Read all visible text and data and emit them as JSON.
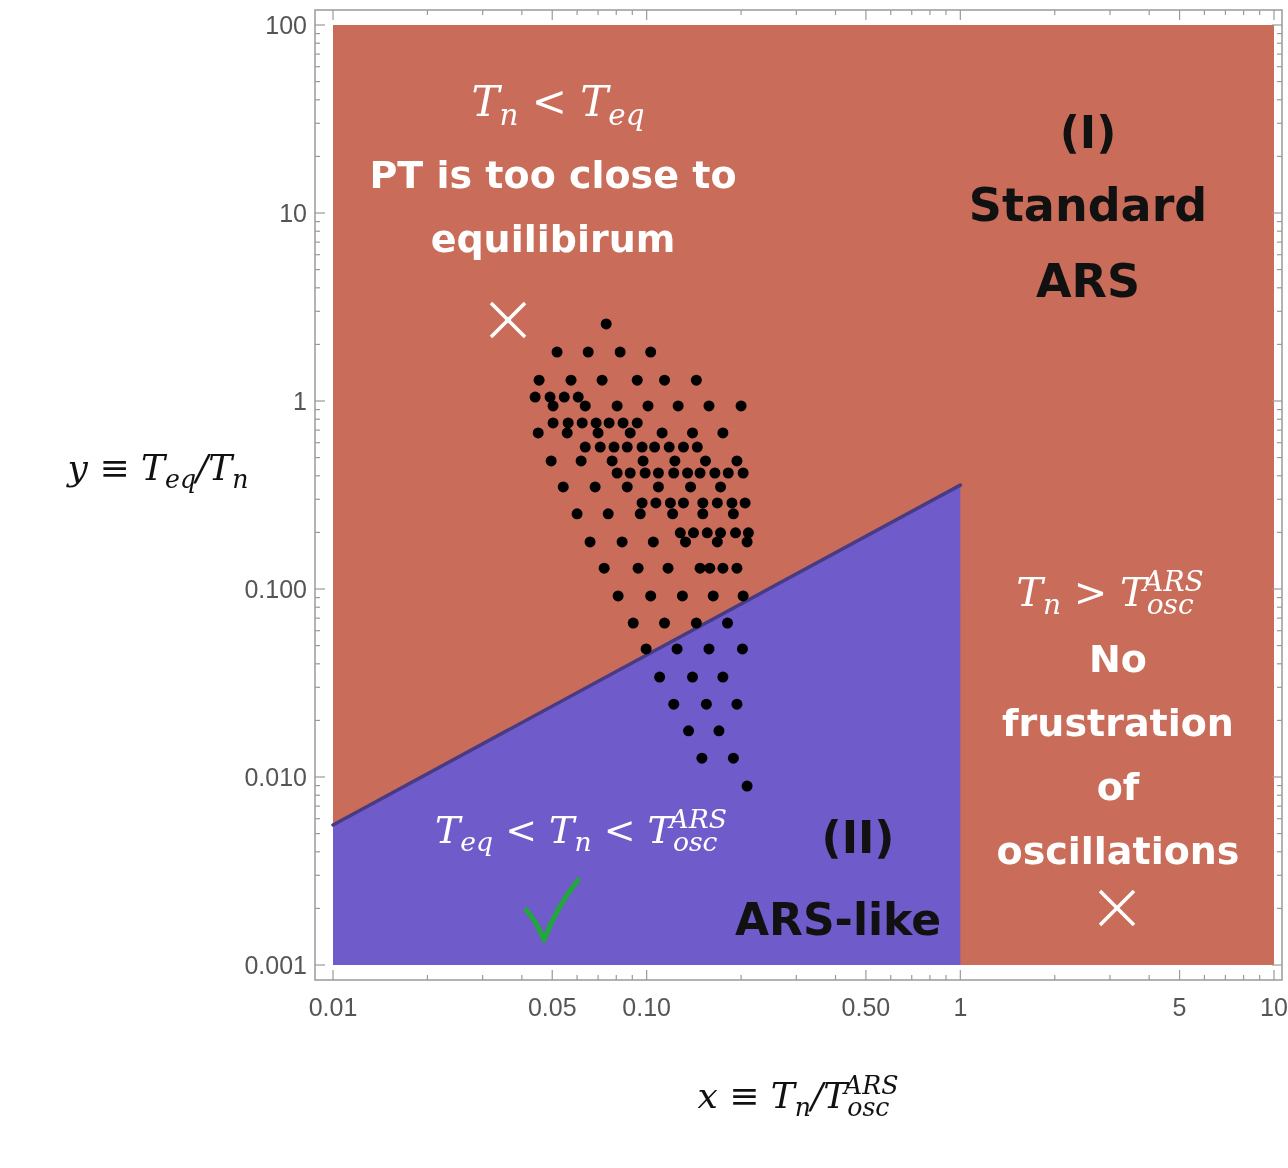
{
  "chart_data": {
    "type": "scatter",
    "xlabel": "x ≡ T$_{n}$/T$_{osc}$$^{ARS}$",
    "ylabel": "y ≡ T$_{eq}$/T$_{n}$",
    "log": "xy",
    "xlim": [
      0.01,
      10
    ],
    "ylim": [
      0.001,
      100
    ],
    "xticks": [
      {
        "value": 0.01,
        "label": "0.01"
      },
      {
        "value": 0.02,
        "label": null
      },
      {
        "value": 0.03,
        "label": null
      },
      {
        "value": 0.04,
        "label": null
      },
      {
        "value": 0.05,
        "label": "0.05"
      },
      {
        "value": 0.06,
        "label": null
      },
      {
        "value": 0.07,
        "label": null
      },
      {
        "value": 0.08,
        "label": null
      },
      {
        "value": 0.09,
        "label": null
      },
      {
        "value": 0.1,
        "label": "0.10"
      },
      {
        "value": 0.2,
        "label": null
      },
      {
        "value": 0.3,
        "label": null
      },
      {
        "value": 0.4,
        "label": null
      },
      {
        "value": 0.5,
        "label": "0.50"
      },
      {
        "value": 0.6,
        "label": null
      },
      {
        "value": 0.7,
        "label": null
      },
      {
        "value": 0.8,
        "label": null
      },
      {
        "value": 0.9,
        "label": null
      },
      1,
      {
        "value": 2,
        "label": null
      },
      {
        "value": 3,
        "label": null
      },
      {
        "value": 4,
        "label": null
      },
      5,
      {
        "value": 6,
        "label": null
      },
      {
        "value": 7,
        "label": null
      },
      {
        "value": 8,
        "label": null
      },
      {
        "value": 9,
        "label": null
      },
      10
    ],
    "yticks": [
      {
        "value": 0.001,
        "label": "0.001"
      },
      {
        "value": 0.002,
        "label": null
      },
      {
        "value": 0.003,
        "label": null
      },
      {
        "value": 0.004,
        "label": null
      },
      {
        "value": 0.005,
        "label": null
      },
      {
        "value": 0.006,
        "label": null
      },
      {
        "value": 0.007,
        "label": null
      },
      {
        "value": 0.008,
        "label": null
      },
      {
        "value": 0.009,
        "label": null
      },
      {
        "value": 0.01,
        "label": "0.010"
      },
      {
        "value": 0.02,
        "label": null
      },
      {
        "value": 0.03,
        "label": null
      },
      {
        "value": 0.04,
        "label": null
      },
      {
        "value": 0.05,
        "label": null
      },
      {
        "value": 0.06,
        "label": null
      },
      {
        "value": 0.07,
        "label": null
      },
      {
        "value": 0.08,
        "label": null
      },
      {
        "value": 0.09,
        "label": null
      },
      {
        "value": 0.1,
        "label": "0.100"
      },
      {
        "value": 0.2,
        "label": null
      },
      {
        "value": 0.3,
        "label": null
      },
      {
        "value": 0.4,
        "label": null
      },
      {
        "value": 0.5,
        "label": null
      },
      {
        "value": 0.6,
        "label": null
      },
      {
        "value": 0.7,
        "label": null
      },
      {
        "value": 0.8,
        "label": null
      },
      {
        "value": 0.9,
        "label": null
      },
      1,
      {
        "value": 2,
        "label": null
      },
      {
        "value": 3,
        "label": null
      },
      {
        "value": 4,
        "label": null
      },
      {
        "value": 5,
        "label": null
      },
      {
        "value": 6,
        "label": null
      },
      {
        "value": 7,
        "label": null
      },
      {
        "value": 8,
        "label": null
      },
      {
        "value": 9,
        "label": null
      },
      10,
      {
        "value": 20,
        "label": null
      },
      {
        "value": 30,
        "label": null
      },
      {
        "value": 40,
        "label": null
      },
      {
        "value": 50,
        "label": null
      },
      {
        "value": 60,
        "label": null
      },
      {
        "value": 70,
        "label": null
      },
      {
        "value": 80,
        "label": null
      },
      {
        "value": 90,
        "label": null
      },
      100
    ],
    "bands": [
      {
        "axis": "y",
        "from": 0.001,
        "to": 100,
        "color": "#c96d5a"
      }
    ],
    "series": [
      {
        "type": "area",
        "color": "#6f5bc9",
        "x": [
          0.01,
          1
        ],
        "values": [
          0.00556,
          0.357
        ]
      },
      {
        "color": "#000000",
        "marker": "circle",
        "x": [
          0.0743,
          0.0518,
          0.0651,
          0.0823,
          0.103,
          0.0454,
          0.0574,
          0.0721,
          0.0933,
          0.114,
          0.144,
          0.0441,
          0.0492,
          0.0546,
          0.0605,
          0.0503,
          0.0637,
          0.0805,
          0.101,
          0.126,
          0.158,
          0.2,
          0.0503,
          0.0562,
          0.0623,
          0.069,
          0.0759,
          0.0841,
          0.0933,
          0.0451,
          0.0558,
          0.07,
          0.0886,
          0.112,
          0.14,
          0.175,
          0.0637,
          0.0711,
          0.0787,
          0.0867,
          0.0967,
          0.106,
          0.118,
          0.131,
          0.145,
          0.0496,
          0.0618,
          0.0776,
          0.0974,
          0.123,
          0.154,
          0.194,
          0.0805,
          0.0886,
          0.0989,
          0.109,
          0.122,
          0.135,
          0.148,
          0.165,
          0.182,
          0.203,
          0.0542,
          0.0685,
          0.0867,
          0.109,
          0.138,
          0.172,
          0.0967,
          0.107,
          0.119,
          0.131,
          0.151,
          0.168,
          0.187,
          0.206,
          0.06,
          0.0754,
          0.0954,
          0.121,
          0.151,
          0.189,
          0.128,
          0.141,
          0.156,
          0.172,
          0.192,
          0.211,
          0.066,
          0.0835,
          0.105,
          0.133,
          0.168,
          0.209,
          0.0732,
          0.0939,
          0.117,
          0.148,
          0.159,
          0.175,
          0.194,
          0.0811,
          0.103,
          0.13,
          0.163,
          0.203,
          0.0906,
          0.114,
          0.144,
          0.181,
          0.0996,
          0.125,
          0.158,
          0.202,
          0.11,
          0.14,
          0.175,
          0.122,
          0.155,
          0.194,
          0.136,
          0.17,
          0.15,
          0.189,
          0.209
        ],
        "values": [
          2.57,
          1.82,
          1.82,
          1.82,
          1.82,
          1.29,
          1.29,
          1.29,
          1.29,
          1.29,
          1.29,
          1.05,
          1.05,
          1.05,
          1.05,
          0.941,
          0.941,
          0.941,
          0.941,
          0.941,
          0.941,
          0.941,
          0.764,
          0.764,
          0.764,
          0.764,
          0.764,
          0.764,
          0.764,
          0.676,
          0.676,
          0.676,
          0.676,
          0.676,
          0.676,
          0.676,
          0.569,
          0.569,
          0.569,
          0.569,
          0.569,
          0.569,
          0.569,
          0.569,
          0.569,
          0.48,
          0.48,
          0.48,
          0.48,
          0.48,
          0.48,
          0.48,
          0.414,
          0.414,
          0.414,
          0.414,
          0.414,
          0.414,
          0.414,
          0.414,
          0.414,
          0.414,
          0.349,
          0.349,
          0.349,
          0.349,
          0.349,
          0.349,
          0.287,
          0.287,
          0.287,
          0.287,
          0.287,
          0.287,
          0.287,
          0.287,
          0.251,
          0.251,
          0.251,
          0.251,
          0.251,
          0.251,
          0.199,
          0.199,
          0.199,
          0.199,
          0.199,
          0.199,
          0.178,
          0.178,
          0.178,
          0.178,
          0.178,
          0.178,
          0.129,
          0.129,
          0.129,
          0.129,
          0.129,
          0.129,
          0.129,
          0.0918,
          0.0918,
          0.0918,
          0.0918,
          0.0918,
          0.0659,
          0.0659,
          0.0659,
          0.0659,
          0.048,
          0.048,
          0.048,
          0.048,
          0.034,
          0.034,
          0.034,
          0.0244,
          0.0244,
          0.0244,
          0.0176,
          0.0176,
          0.0126,
          0.0126,
          0.00895
        ]
      }
    ],
    "annotations": [
      "T$_{n}$ < T$_{eq}$",
      "PT is too close to equilibirum",
      "(I)",
      "Standard ARS",
      "T$_{n}$ > T$_{osc}$$^{ARS}$",
      "No frustration of oscillations",
      "T$_{eq}$ < T$_{n}$ < T$_{osc}$$^{ARS}$",
      "(II)",
      "ARS-like"
    ]
  }
}
